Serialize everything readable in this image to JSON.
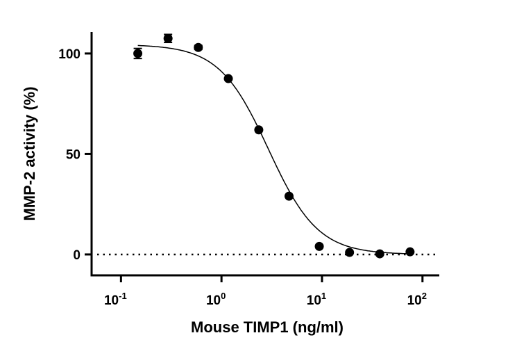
{
  "chart_data": {
    "type": "scatter",
    "title": "",
    "xlabel": "Mouse TIMP1 (ng/ml)",
    "ylabel": "MMP-2 activity (%)",
    "xscale": "log",
    "xlim": [
      0.051,
      147
    ],
    "ylim": [
      -10.4,
      110.7
    ],
    "grid": false,
    "x_ticks": [
      {
        "base": "10",
        "exp": "-1",
        "value": 0.1
      },
      {
        "base": "10",
        "exp": "0",
        "value": 1
      },
      {
        "base": "10",
        "exp": "1",
        "value": 10
      },
      {
        "base": "10",
        "exp": "2",
        "value": 100
      }
    ],
    "y_ticks": [
      {
        "label": "0",
        "value": 0
      },
      {
        "label": "50",
        "value": 50
      },
      {
        "label": "100",
        "value": 100
      }
    ],
    "points": {
      "x": [
        0.147,
        0.294,
        0.588,
        1.17,
        2.35,
        4.7,
        9.4,
        18.8,
        37.6,
        75.2
      ],
      "y": [
        100,
        107.5,
        103,
        87.5,
        62,
        29,
        4,
        1,
        0.3,
        1.3
      ],
      "error": [
        2.5,
        2,
        1,
        0,
        0,
        0,
        0,
        0,
        0,
        0
      ]
    },
    "fit": {
      "model": "4PL",
      "top": 104.5,
      "bottom": 0,
      "ic50": 2.94,
      "hill": 1.77,
      "x_range": [
        0.147,
        75.2
      ]
    },
    "reference_line": {
      "y": 0,
      "style": "dotted"
    },
    "colors": {
      "marker": "#000000",
      "line": "#000000"
    }
  }
}
